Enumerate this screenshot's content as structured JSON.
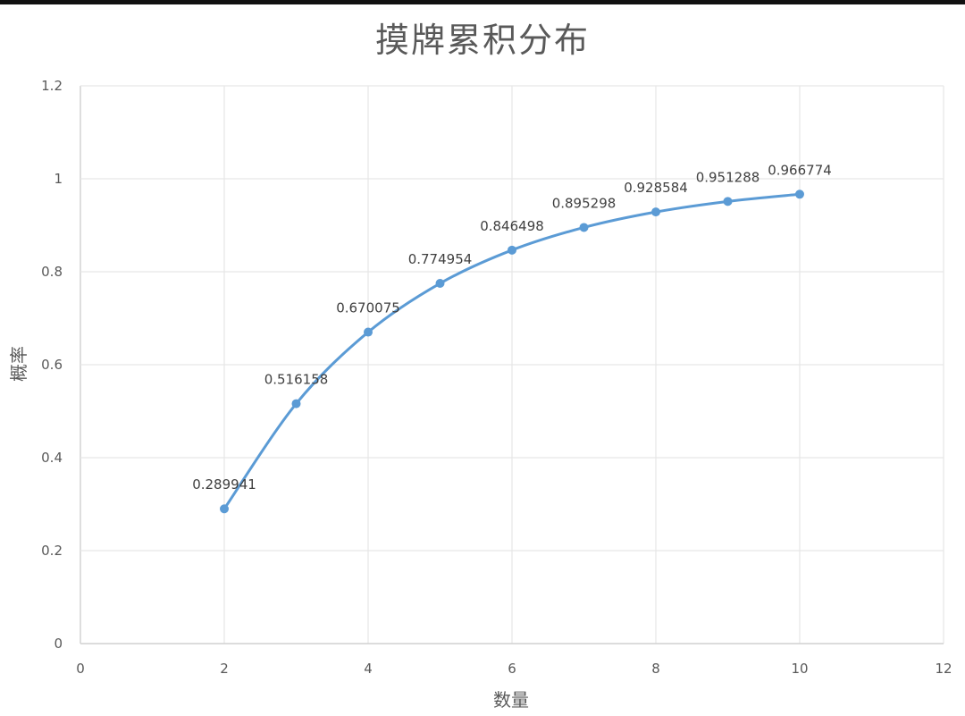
{
  "chart_data": {
    "type": "scatter",
    "title": "摸牌累积分布",
    "xlabel": "数量",
    "ylabel": "概率",
    "xlim": [
      0,
      12
    ],
    "ylim": [
      0,
      1.2
    ],
    "x_ticks": [
      "0",
      "2",
      "4",
      "6",
      "8",
      "10",
      "12"
    ],
    "y_ticks": [
      "0",
      "0.2",
      "0.4",
      "0.6",
      "0.8",
      "1",
      "1.2"
    ],
    "grid": true,
    "smooth_line": true,
    "series": [
      {
        "x": [
          2,
          3,
          4,
          5,
          6,
          7,
          8,
          9,
          10
        ],
        "y": [
          0.289941,
          0.516158,
          0.670075,
          0.774954,
          0.846498,
          0.895298,
          0.928584,
          0.951288,
          0.966774
        ],
        "labels": [
          "0.289941",
          "0.516158",
          "0.670075",
          "0.774954",
          "0.846498",
          "0.895298",
          "0.928584",
          "0.951288",
          "0.966774"
        ],
        "color": "#5b9bd5"
      }
    ]
  }
}
